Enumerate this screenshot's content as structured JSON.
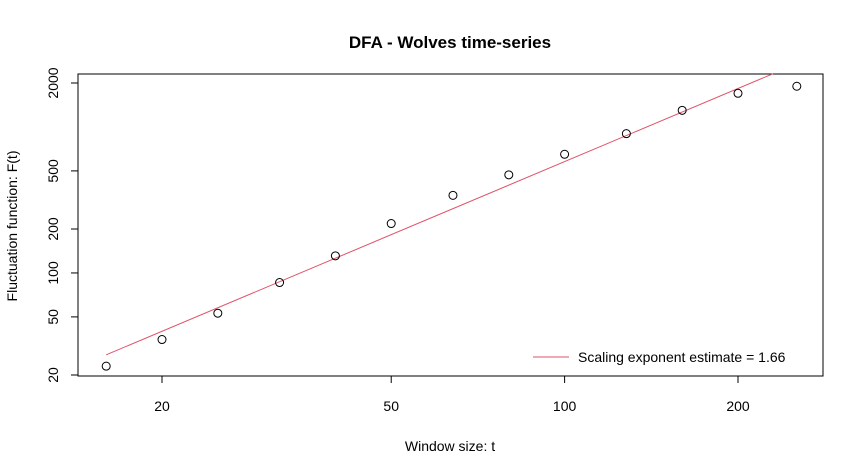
{
  "chart_data": {
    "type": "scatter",
    "title": "DFA - Wolves time-series",
    "xlabel": "Window size: t",
    "ylabel": "Fluctuation function: F(t)",
    "x_scale": "log",
    "y_scale": "log",
    "xlim": [
      15,
      270
    ],
    "ylim": [
      20,
      2100
    ],
    "x_ticks": [
      20,
      50,
      100,
      200
    ],
    "y_ticks": [
      20,
      50,
      100,
      200,
      500,
      2000
    ],
    "grid": false,
    "legend_position": "bottom-right",
    "series": [
      {
        "kind": "points",
        "marker": "open-circle",
        "color": "#000000",
        "x": [
          16,
          20,
          25,
          32,
          40,
          50,
          64,
          80,
          100,
          128,
          160,
          200,
          253
        ],
        "y": [
          23,
          35,
          53,
          86,
          131,
          218,
          340,
          470,
          650,
          900,
          1300,
          1700,
          1900
        ]
      },
      {
        "kind": "line",
        "name": "Scaling exponent estimate = 1.66",
        "color": "#df536b",
        "x": [
          16,
          231
        ],
        "y": [
          27.5,
          2330
        ]
      }
    ]
  }
}
